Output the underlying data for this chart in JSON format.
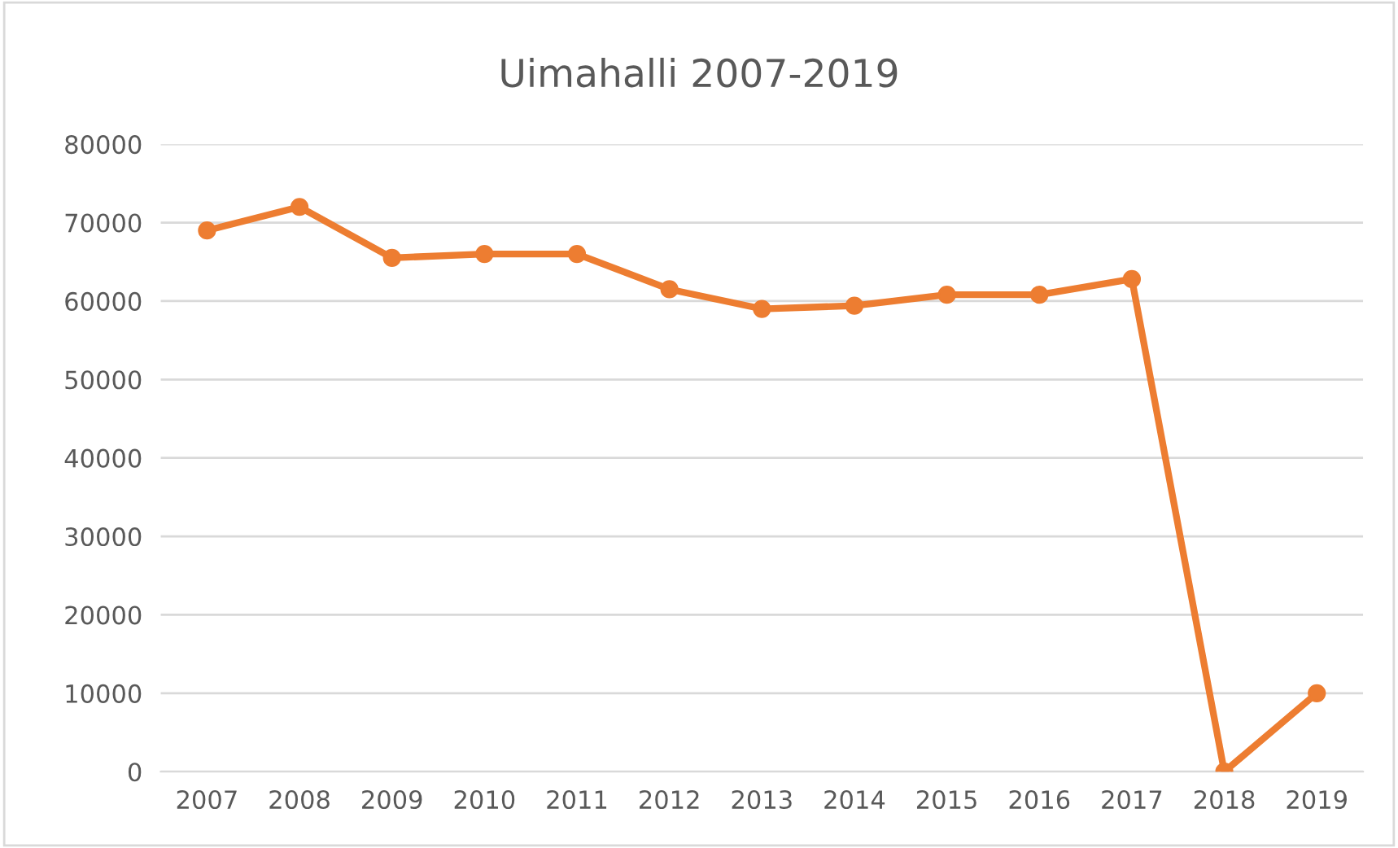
{
  "chart_data": {
    "type": "line",
    "title": "Uimahalli 2007-2019",
    "categories": [
      "2007",
      "2008",
      "2009",
      "2010",
      "2011",
      "2012",
      "2013",
      "2014",
      "2015",
      "2016",
      "2017",
      "2018",
      "2019"
    ],
    "series": [
      {
        "color": "#ed7d31",
        "values": [
          69000,
          72000,
          65500,
          66000,
          66000,
          61500,
          59000,
          59400,
          60800,
          60800,
          62800,
          0,
          10000
        ]
      }
    ],
    "ylim": [
      0,
      80000
    ],
    "yticks": [
      0,
      10000,
      20000,
      30000,
      40000,
      50000,
      60000,
      70000,
      80000
    ],
    "grid": "y",
    "marker": "circle",
    "line_style": "solid",
    "legend": false
  }
}
